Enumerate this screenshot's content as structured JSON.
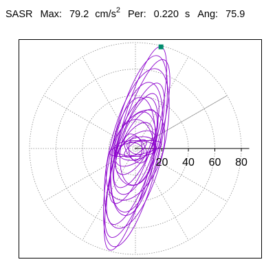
{
  "header": {
    "station": "SASR",
    "max_label": "Max:",
    "max_value": "79.2",
    "max_unit_base": "cm/s",
    "max_unit_exp": "2",
    "per_label": "Per:",
    "per_value": "0.220",
    "per_unit": "s",
    "ang_label": "Ang:",
    "ang_value": "75.9"
  },
  "chart_data": {
    "type": "polar-orbit",
    "radial_ticks": [
      "20",
      "40",
      "60",
      "80"
    ],
    "radial_range": [
      0,
      80
    ],
    "max_point": {
      "x": 19.3,
      "y": 76.8
    },
    "orbit_color": "#8b00cc",
    "marker_color": "#008c6e",
    "ellipses": [
      {
        "rx": 79.2,
        "ry": 14.0,
        "angle": 75.9,
        "cx": 0,
        "cy": 0
      },
      {
        "rx": 70.0,
        "ry": 15.0,
        "angle": 73.5,
        "cx": 1.5,
        "cy": 0
      },
      {
        "rx": 74.0,
        "ry": 18.0,
        "angle": 77.0,
        "cx": 0,
        "cy": -2
      },
      {
        "rx": 62.0,
        "ry": 20.0,
        "angle": 76.0,
        "cx": 1,
        "cy": 0
      },
      {
        "rx": 56.0,
        "ry": 14.0,
        "angle": 72.0,
        "cx": 0,
        "cy": -4
      },
      {
        "rx": 50.0,
        "ry": 17.0,
        "angle": 78.0,
        "cx": 1,
        "cy": 1
      },
      {
        "rx": 44.0,
        "ry": 12.0,
        "angle": 70.0,
        "cx": -1,
        "cy": 0
      },
      {
        "rx": 38.0,
        "ry": 14.0,
        "angle": 74.0,
        "cx": 0,
        "cy": 2
      },
      {
        "rx": 32.0,
        "ry": 11.0,
        "angle": 66.0,
        "cx": 0,
        "cy": 0
      },
      {
        "rx": 28.0,
        "ry": 13.0,
        "angle": 80.0,
        "cx": 2,
        "cy": 0
      },
      {
        "rx": 22.0,
        "ry": 10.0,
        "angle": 60.0,
        "cx": -1,
        "cy": 0
      },
      {
        "rx": 18.0,
        "ry": 9.0,
        "angle": 40.0,
        "cx": 0,
        "cy": 0
      },
      {
        "rx": 14.0,
        "ry": 8.0,
        "angle": 20.0,
        "cx": 1,
        "cy": 0
      },
      {
        "rx": 16.0,
        "ry": 6.0,
        "angle": 0.0,
        "cx": 0,
        "cy": 0
      },
      {
        "rx": 12.0,
        "ry": 7.0,
        "angle": 120.0,
        "cx": 0,
        "cy": 0
      },
      {
        "rx": 9.0,
        "ry": 5.0,
        "angle": 90.0,
        "cx": 0,
        "cy": 0
      },
      {
        "rx": 7.0,
        "ry": 4.0,
        "angle": 150.0,
        "cx": 0,
        "cy": 0
      },
      {
        "rx": 10.0,
        "ry": 4.0,
        "angle": 35.0,
        "cx": 0,
        "cy": 0
      },
      {
        "rx": 20.0,
        "ry": 5.0,
        "angle": 10.0,
        "cx": 0,
        "cy": 0
      },
      {
        "rx": 45.0,
        "ry": 16.0,
        "angle": 82.0,
        "cx": -2,
        "cy": -6
      },
      {
        "rx": 36.0,
        "ry": 19.0,
        "angle": 68.0,
        "cx": 0,
        "cy": -5
      },
      {
        "rx": 25.0,
        "ry": 15.0,
        "angle": 85.0,
        "cx": -1,
        "cy": -3
      }
    ]
  }
}
